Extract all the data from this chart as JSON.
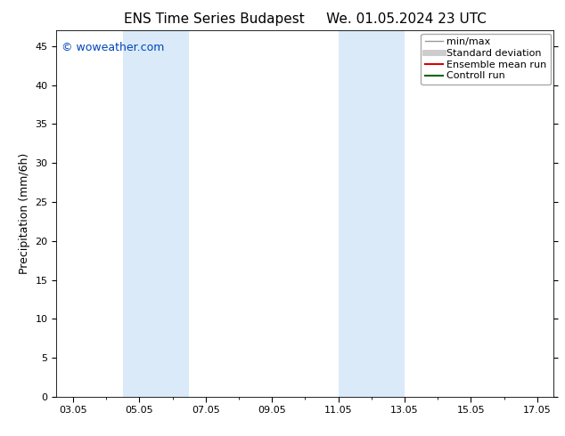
{
  "title_left": "ENS Time Series Budapest",
  "title_right": "We. 01.05.2024 23 UTC",
  "ylabel": "Precipitation (mm/6h)",
  "watermark": "© woweather.com",
  "watermark_color": "#0044bb",
  "xlim_start": 2.5,
  "xlim_end": 17.5,
  "ylim": [
    0,
    47
  ],
  "yticks": [
    0,
    5,
    10,
    15,
    20,
    25,
    30,
    35,
    40,
    45
  ],
  "xtick_labels": [
    "03.05",
    "05.05",
    "07.05",
    "09.05",
    "11.05",
    "13.05",
    "15.05",
    "17.05"
  ],
  "xtick_positions": [
    3,
    5,
    7,
    9,
    11,
    13,
    15,
    17
  ],
  "shaded_bands": [
    {
      "xmin": 4.5,
      "xmax": 5.5,
      "color": "#daeaf8"
    },
    {
      "xmin": 5.5,
      "xmax": 6.5,
      "color": "#daeaf8"
    },
    {
      "xmin": 11.0,
      "xmax": 12.0,
      "color": "#daeaf8"
    },
    {
      "xmin": 12.0,
      "xmax": 13.0,
      "color": "#daeaf8"
    }
  ],
  "legend_entries": [
    {
      "label": "min/max",
      "color": "#999999",
      "linewidth": 1.0,
      "style": "line"
    },
    {
      "label": "Standard deviation",
      "color": "#cccccc",
      "linewidth": 5,
      "style": "line"
    },
    {
      "label": "Ensemble mean run",
      "color": "#dd0000",
      "linewidth": 1.5,
      "style": "line"
    },
    {
      "label": "Controll run",
      "color": "#006600",
      "linewidth": 1.5,
      "style": "line"
    }
  ],
  "background_color": "#ffffff",
  "plot_bg_color": "#ffffff",
  "title_fontsize": 11,
  "axis_label_fontsize": 9,
  "tick_fontsize": 8,
  "watermark_fontsize": 9,
  "legend_fontsize": 8
}
